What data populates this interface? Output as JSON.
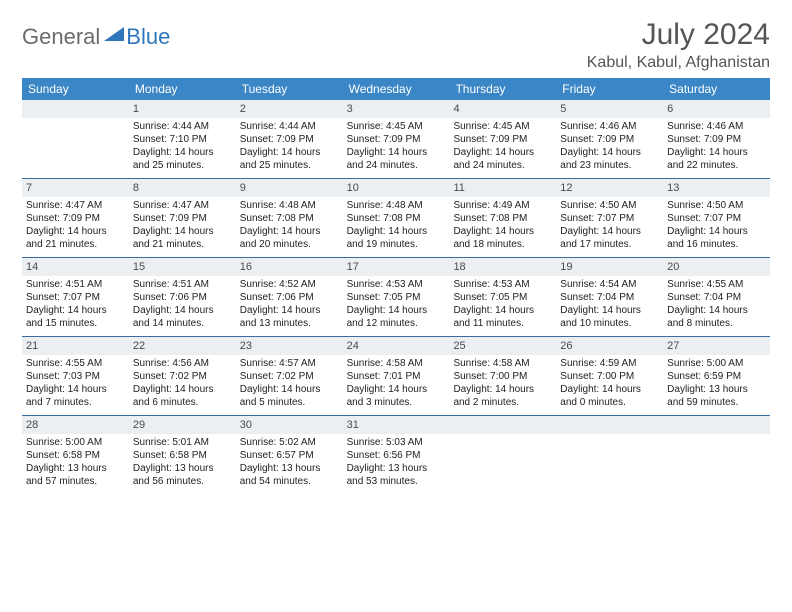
{
  "logo": {
    "general": "General",
    "blue": "Blue"
  },
  "title": "July 2024",
  "location": "Kabul, Kabul, Afghanistan",
  "colors": {
    "header_bg": "#3b86c6",
    "header_text": "#ffffff",
    "daynum_bg": "#eceff1",
    "row_border": "#3b6ea0",
    "logo_gray": "#6c6c6c",
    "logo_blue": "#2f77bb",
    "text": "#222222"
  },
  "weekdays": [
    "Sunday",
    "Monday",
    "Tuesday",
    "Wednesday",
    "Thursday",
    "Friday",
    "Saturday"
  ],
  "weeks": [
    [
      {
        "blank": true
      },
      {
        "n": "1",
        "sr": "4:44 AM",
        "ss": "7:10 PM",
        "dl": "14 hours and 25 minutes."
      },
      {
        "n": "2",
        "sr": "4:44 AM",
        "ss": "7:09 PM",
        "dl": "14 hours and 25 minutes."
      },
      {
        "n": "3",
        "sr": "4:45 AM",
        "ss": "7:09 PM",
        "dl": "14 hours and 24 minutes."
      },
      {
        "n": "4",
        "sr": "4:45 AM",
        "ss": "7:09 PM",
        "dl": "14 hours and 24 minutes."
      },
      {
        "n": "5",
        "sr": "4:46 AM",
        "ss": "7:09 PM",
        "dl": "14 hours and 23 minutes."
      },
      {
        "n": "6",
        "sr": "4:46 AM",
        "ss": "7:09 PM",
        "dl": "14 hours and 22 minutes."
      }
    ],
    [
      {
        "n": "7",
        "sr": "4:47 AM",
        "ss": "7:09 PM",
        "dl": "14 hours and 21 minutes."
      },
      {
        "n": "8",
        "sr": "4:47 AM",
        "ss": "7:09 PM",
        "dl": "14 hours and 21 minutes."
      },
      {
        "n": "9",
        "sr": "4:48 AM",
        "ss": "7:08 PM",
        "dl": "14 hours and 20 minutes."
      },
      {
        "n": "10",
        "sr": "4:48 AM",
        "ss": "7:08 PM",
        "dl": "14 hours and 19 minutes."
      },
      {
        "n": "11",
        "sr": "4:49 AM",
        "ss": "7:08 PM",
        "dl": "14 hours and 18 minutes."
      },
      {
        "n": "12",
        "sr": "4:50 AM",
        "ss": "7:07 PM",
        "dl": "14 hours and 17 minutes."
      },
      {
        "n": "13",
        "sr": "4:50 AM",
        "ss": "7:07 PM",
        "dl": "14 hours and 16 minutes."
      }
    ],
    [
      {
        "n": "14",
        "sr": "4:51 AM",
        "ss": "7:07 PM",
        "dl": "14 hours and 15 minutes."
      },
      {
        "n": "15",
        "sr": "4:51 AM",
        "ss": "7:06 PM",
        "dl": "14 hours and 14 minutes."
      },
      {
        "n": "16",
        "sr": "4:52 AM",
        "ss": "7:06 PM",
        "dl": "14 hours and 13 minutes."
      },
      {
        "n": "17",
        "sr": "4:53 AM",
        "ss": "7:05 PM",
        "dl": "14 hours and 12 minutes."
      },
      {
        "n": "18",
        "sr": "4:53 AM",
        "ss": "7:05 PM",
        "dl": "14 hours and 11 minutes."
      },
      {
        "n": "19",
        "sr": "4:54 AM",
        "ss": "7:04 PM",
        "dl": "14 hours and 10 minutes."
      },
      {
        "n": "20",
        "sr": "4:55 AM",
        "ss": "7:04 PM",
        "dl": "14 hours and 8 minutes."
      }
    ],
    [
      {
        "n": "21",
        "sr": "4:55 AM",
        "ss": "7:03 PM",
        "dl": "14 hours and 7 minutes."
      },
      {
        "n": "22",
        "sr": "4:56 AM",
        "ss": "7:02 PM",
        "dl": "14 hours and 6 minutes."
      },
      {
        "n": "23",
        "sr": "4:57 AM",
        "ss": "7:02 PM",
        "dl": "14 hours and 5 minutes."
      },
      {
        "n": "24",
        "sr": "4:58 AM",
        "ss": "7:01 PM",
        "dl": "14 hours and 3 minutes."
      },
      {
        "n": "25",
        "sr": "4:58 AM",
        "ss": "7:00 PM",
        "dl": "14 hours and 2 minutes."
      },
      {
        "n": "26",
        "sr": "4:59 AM",
        "ss": "7:00 PM",
        "dl": "14 hours and 0 minutes."
      },
      {
        "n": "27",
        "sr": "5:00 AM",
        "ss": "6:59 PM",
        "dl": "13 hours and 59 minutes."
      }
    ],
    [
      {
        "n": "28",
        "sr": "5:00 AM",
        "ss": "6:58 PM",
        "dl": "13 hours and 57 minutes."
      },
      {
        "n": "29",
        "sr": "5:01 AM",
        "ss": "6:58 PM",
        "dl": "13 hours and 56 minutes."
      },
      {
        "n": "30",
        "sr": "5:02 AM",
        "ss": "6:57 PM",
        "dl": "13 hours and 54 minutes."
      },
      {
        "n": "31",
        "sr": "5:03 AM",
        "ss": "6:56 PM",
        "dl": "13 hours and 53 minutes."
      },
      {
        "blank": true
      },
      {
        "blank": true
      },
      {
        "blank": true
      }
    ]
  ],
  "labels": {
    "sunrise": "Sunrise:",
    "sunset": "Sunset:",
    "daylight": "Daylight:"
  }
}
